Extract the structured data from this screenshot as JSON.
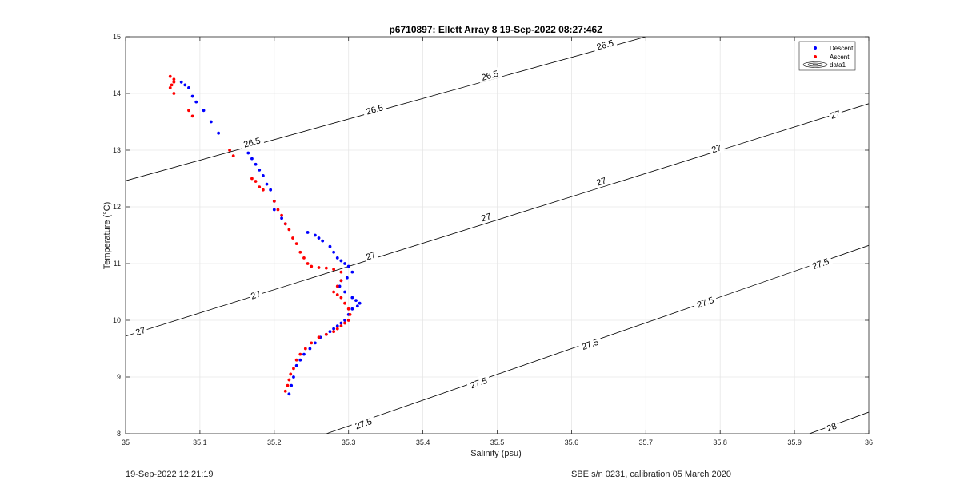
{
  "chart_data": {
    "type": "scatter",
    "title": "p6710897: Ellett Array 8 19-Sep-2022 08:27:46Z",
    "xlabel": "Salinity (psu)",
    "ylabel": "Temperature (°C)",
    "xlim": [
      35,
      36
    ],
    "ylim": [
      8,
      15
    ],
    "xticks": [
      "35",
      "35.1",
      "35.2",
      "35.3",
      "35.4",
      "35.5",
      "35.6",
      "35.7",
      "35.8",
      "35.9",
      "36"
    ],
    "yticks": [
      "8",
      "9",
      "10",
      "11",
      "12",
      "13",
      "14",
      "15"
    ],
    "grid": true,
    "legend_position": "top-right",
    "legend": [
      {
        "label": "Descent",
        "color": "#0000ff",
        "marker": "dot"
      },
      {
        "label": "Ascent",
        "color": "#ff0000",
        "marker": "dot"
      },
      {
        "label": "data1",
        "color": "#000000",
        "marker": "contour"
      }
    ],
    "contours": [
      {
        "level": "26.5",
        "x": [
          35.0,
          35.7
        ],
        "y": [
          12.46,
          15.0
        ]
      },
      {
        "level": "27",
        "x": [
          35.0,
          36.0
        ],
        "y": [
          9.72,
          13.82
        ]
      },
      {
        "level": "27.5",
        "x": [
          35.27,
          36.0
        ],
        "y": [
          8.0,
          11.32
        ]
      },
      {
        "level": "28",
        "x": [
          35.92,
          36.0
        ],
        "y": [
          8.0,
          8.38
        ]
      }
    ],
    "contour_labels": [
      {
        "text": "26.5",
        "x": 35.17,
        "y": 13.14
      },
      {
        "text": "26.5",
        "x": 35.335,
        "y": 13.72
      },
      {
        "text": "26.5",
        "x": 35.49,
        "y": 14.32
      },
      {
        "text": "26.5",
        "x": 35.645,
        "y": 14.86
      },
      {
        "text": "27",
        "x": 35.02,
        "y": 9.81
      },
      {
        "text": "27",
        "x": 35.175,
        "y": 10.45
      },
      {
        "text": "27",
        "x": 35.33,
        "y": 11.14
      },
      {
        "text": "27",
        "x": 35.485,
        "y": 11.82
      },
      {
        "text": "27",
        "x": 35.64,
        "y": 12.45
      },
      {
        "text": "27",
        "x": 35.795,
        "y": 13.03
      },
      {
        "text": "27",
        "x": 35.955,
        "y": 13.63
      },
      {
        "text": "27.5",
        "x": 35.32,
        "y": 8.18
      },
      {
        "text": "27.5",
        "x": 35.475,
        "y": 8.9
      },
      {
        "text": "27.5",
        "x": 35.625,
        "y": 9.58
      },
      {
        "text": "27.5",
        "x": 35.78,
        "y": 10.32
      },
      {
        "text": "27.5",
        "x": 35.935,
        "y": 11.0
      },
      {
        "text": "28",
        "x": 35.95,
        "y": 8.12
      }
    ],
    "series": [
      {
        "name": "Descent",
        "color": "#0000ff",
        "x": [
          35.075,
          35.08,
          35.085,
          35.09,
          35.095,
          35.105,
          35.115,
          35.125,
          35.165,
          35.17,
          35.175,
          35.18,
          35.185,
          35.19,
          35.195,
          35.2,
          35.2,
          35.21,
          35.215,
          35.245,
          35.255,
          35.26,
          35.265,
          35.275,
          35.28,
          35.285,
          35.29,
          35.295,
          35.3,
          35.305,
          35.298,
          35.29,
          35.288,
          35.295,
          35.305,
          35.31,
          35.315,
          35.312,
          35.305,
          35.3,
          35.295,
          35.29,
          35.285,
          35.28,
          35.275,
          35.27,
          35.262,
          35.255,
          35.248,
          35.24,
          35.235,
          35.23,
          35.226,
          35.223,
          35.22
        ],
        "y": [
          14.2,
          14.15,
          14.1,
          13.95,
          13.85,
          13.7,
          13.5,
          13.3,
          12.95,
          12.85,
          12.75,
          12.65,
          12.55,
          12.4,
          12.3,
          12.1,
          11.95,
          11.8,
          11.7,
          11.55,
          11.5,
          11.45,
          11.4,
          11.3,
          11.2,
          11.1,
          11.05,
          11.0,
          10.95,
          10.85,
          10.75,
          10.7,
          10.6,
          10.5,
          10.4,
          10.35,
          10.3,
          10.25,
          10.2,
          10.1,
          10.0,
          9.95,
          9.9,
          9.85,
          9.8,
          9.75,
          9.7,
          9.6,
          9.5,
          9.4,
          9.3,
          9.2,
          9.0,
          8.85,
          8.7
        ]
      },
      {
        "name": "Ascent",
        "color": "#ff0000",
        "x": [
          35.06,
          35.065,
          35.065,
          35.062,
          35.06,
          35.065,
          35.085,
          35.09,
          35.14,
          35.145,
          35.17,
          35.175,
          35.18,
          35.185,
          35.2,
          35.205,
          35.21,
          35.215,
          35.22,
          35.225,
          35.23,
          35.235,
          35.24,
          35.245,
          35.25,
          35.26,
          35.27,
          35.28,
          35.29,
          35.29,
          35.285,
          35.28,
          35.285,
          35.29,
          35.295,
          35.3,
          35.302,
          35.3,
          35.295,
          35.29,
          35.285,
          35.28,
          35.27,
          35.26,
          35.25,
          35.242,
          35.235,
          35.23,
          35.226,
          35.222,
          35.22,
          35.218,
          35.215
        ],
        "y": [
          14.3,
          14.25,
          14.2,
          14.15,
          14.1,
          14.0,
          13.7,
          13.6,
          13.0,
          12.9,
          12.5,
          12.45,
          12.35,
          12.3,
          12.1,
          11.95,
          11.85,
          11.7,
          11.6,
          11.45,
          11.35,
          11.2,
          11.1,
          11.0,
          10.95,
          10.93,
          10.92,
          10.9,
          10.85,
          10.7,
          10.6,
          10.5,
          10.45,
          10.4,
          10.3,
          10.2,
          10.1,
          10.0,
          9.95,
          9.9,
          9.85,
          9.8,
          9.75,
          9.7,
          9.6,
          9.5,
          9.4,
          9.3,
          9.15,
          9.05,
          8.95,
          8.85,
          8.75
        ]
      }
    ]
  },
  "footer": {
    "left": "19-Sep-2022 12:21:19",
    "right": "SBE s/n 0231, calibration 05 March 2020"
  }
}
